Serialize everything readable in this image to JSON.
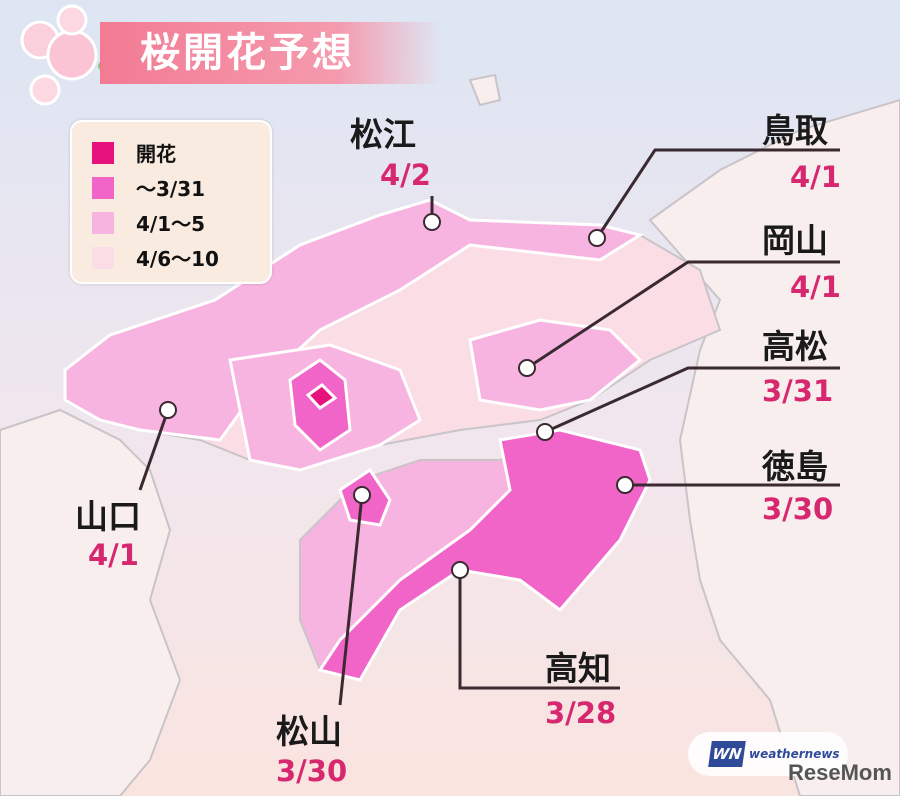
{
  "title": "桜開花予想",
  "legend": [
    {
      "label": "開花",
      "color": "#e8127f"
    },
    {
      "label": "〜3/31",
      "color": "#f265c8"
    },
    {
      "label": "4/1〜5",
      "color": "#f8b4e0"
    },
    {
      "label": "4/6〜10",
      "color": "#fbdde6"
    }
  ],
  "cities": [
    {
      "name": "松江",
      "date": "4/2"
    },
    {
      "name": "鳥取",
      "date": "4/1"
    },
    {
      "name": "岡山",
      "date": "4/1"
    },
    {
      "name": "高松",
      "date": "3/31"
    },
    {
      "name": "徳島",
      "date": "3/30"
    },
    {
      "name": "高知",
      "date": "3/28"
    },
    {
      "name": "松山",
      "date": "3/30"
    },
    {
      "name": "山口",
      "date": "4/1"
    }
  ],
  "logos": {
    "weathernews_mark": "WN",
    "weathernews": "weathernews",
    "resemom": "ReseMom"
  }
}
